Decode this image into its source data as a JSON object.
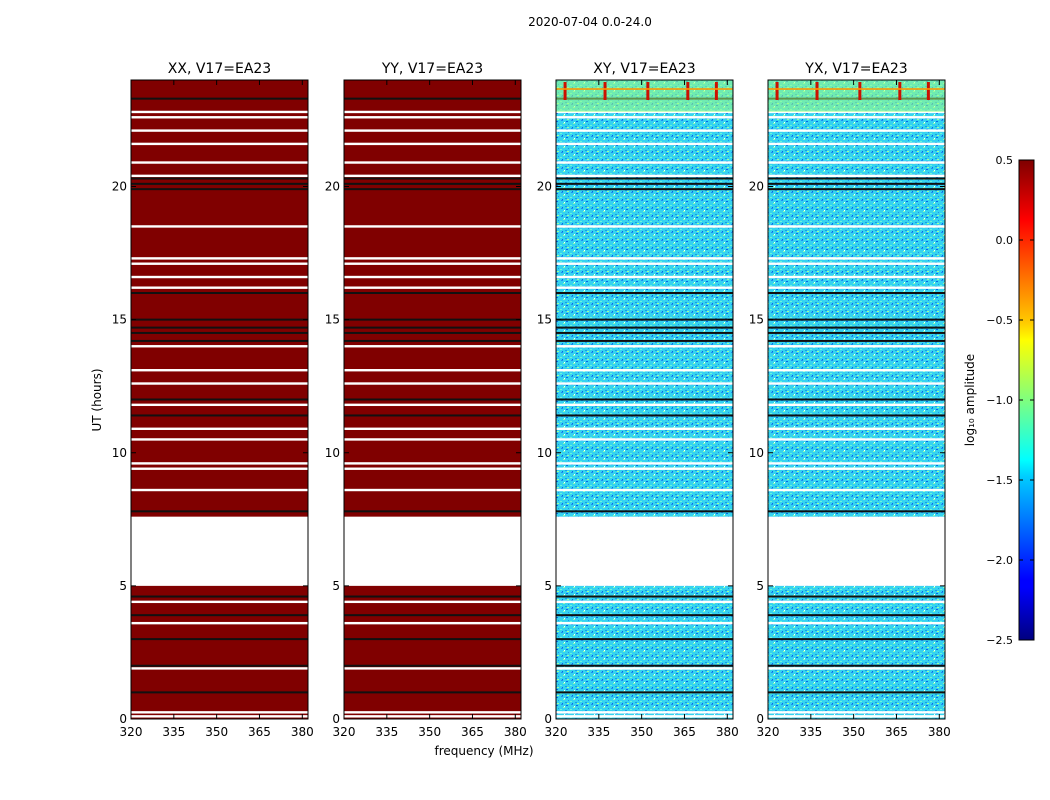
{
  "suptitle": "2020-07-04 0.0-24.0",
  "chart_data": {
    "type": "heatmap",
    "x_ticks": [
      320,
      335,
      350,
      365,
      380
    ],
    "y_ticks": [
      0,
      5,
      10,
      15,
      20
    ],
    "xlim": [
      320,
      382
    ],
    "ylim": [
      0,
      24
    ],
    "xlabel": "frequency (MHz)",
    "ylabel": "UT (hours)",
    "colorbar": {
      "label": "log₁₀ amplitude",
      "ticks": [
        "0.5",
        "0.0",
        "−0.5",
        "−1.0",
        "−1.5",
        "−2.0",
        "−2.5"
      ],
      "range": [
        -2.5,
        0.5
      ]
    },
    "gap_hours": [
      5.0,
      7.6
    ],
    "white_line_hours": [
      0.1,
      0.25,
      1.9,
      3.6,
      4.4,
      8.6,
      9.4,
      9.6,
      10.5,
      10.9,
      11.8,
      12.6,
      13.1,
      14.0,
      16.2,
      16.6,
      17.1,
      17.3,
      18.5,
      20.4,
      20.9,
      21.6,
      22.1,
      22.6,
      22.8
    ],
    "black_line_hours": [
      1.0,
      2.0,
      3.0,
      3.9,
      4.6,
      7.8,
      11.4,
      12.0,
      14.2,
      14.5,
      14.7,
      15.0,
      16.0,
      19.9,
      20.1,
      20.3,
      23.3
    ],
    "panels": [
      {
        "title": "XX, V17=EA23",
        "kind": "auto",
        "level": 0.5
      },
      {
        "title": "YY, V17=EA23",
        "kind": "auto",
        "level": 0.5
      },
      {
        "title": "XY, V17=EA23",
        "kind": "cross",
        "level": -1.5
      },
      {
        "title": "YX, V17=EA23",
        "kind": "cross",
        "level": -1.5
      }
    ]
  }
}
